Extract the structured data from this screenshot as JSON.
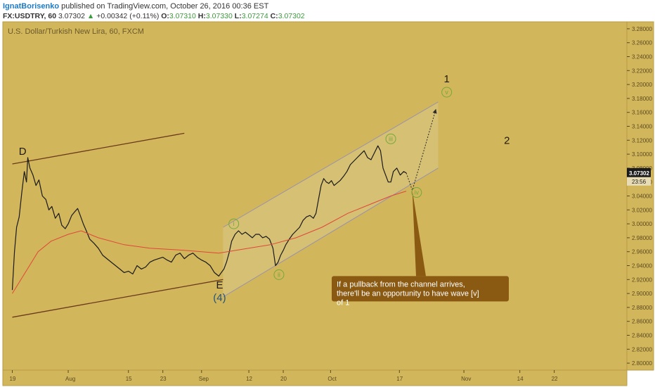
{
  "header": {
    "author": "IgnatBorisenko",
    "published": "published on TradingView.com, October 26, 2016 00:36 EST",
    "symbol": "FX:USDTRY, 60",
    "last": "3.07302",
    "change_arrow": "▲",
    "change": "+0.00342 (+0.11%)",
    "o_label": "O:",
    "o": "3.07310",
    "h_label": "H:",
    "h": "3.07330",
    "l_label": "L:",
    "l": "3.07274",
    "c_label": "C:",
    "c": "3.07302"
  },
  "colors": {
    "panel_bg": "#d2b65c",
    "price_line": "#1a1a1a",
    "moving_average": "#e0473a",
    "trend_lines": "#6b3a1c",
    "channel_lines": "#9a92a8",
    "channel_fill": "#d9c888",
    "callout_bg": "#8b5a12",
    "wave_circle": "#76a83a",
    "axis_text": "#5a4a20",
    "price_badge": "#1b1b1b"
  },
  "chart_data": {
    "type": "line",
    "title": "U.S. Dollar/Turkish New Lira, 60, FXCM",
    "y_axis": {
      "min": 2.79,
      "max": 3.29,
      "ticks": [
        "3.28000",
        "3.26000",
        "3.24000",
        "3.22000",
        "3.20000",
        "3.18000",
        "3.16000",
        "3.14000",
        "3.12000",
        "3.10000",
        "3.08000",
        "3.06000",
        "3.04000",
        "3.02000",
        "3.00000",
        "2.98000",
        "2.96000",
        "2.94000",
        "2.92000",
        "2.90000",
        "2.88000",
        "2.86000",
        "2.84000",
        "2.82000",
        "2.80000"
      ]
    },
    "x_axis": {
      "ticks": [
        {
          "label": "19",
          "day": 0
        },
        {
          "label": "Aug",
          "day": 13
        },
        {
          "label": "15",
          "day": 27
        },
        {
          "label": "23",
          "day": 35
        },
        {
          "label": "Sep",
          "day": 44
        },
        {
          "label": "12",
          "day": 55
        },
        {
          "label": "20",
          "day": 63
        },
        {
          "label": "Oct",
          "day": 74
        },
        {
          "label": "17",
          "day": 90
        },
        {
          "label": "Nov",
          "day": 105
        },
        {
          "label": "14",
          "day": 118
        },
        {
          "label": "22",
          "day": 126
        }
      ]
    },
    "last_price": {
      "value": 3.07302,
      "label": "3.07302",
      "countdown": "23:56"
    },
    "series": [
      {
        "role": "price",
        "points": [
          [
            0,
            2.905
          ],
          [
            0.5,
            2.96
          ],
          [
            1,
            2.995
          ],
          [
            1.6,
            3.01
          ],
          [
            2.2,
            3.045
          ],
          [
            2.8,
            3.075
          ],
          [
            3.3,
            3.06
          ],
          [
            3.6,
            3.095
          ],
          [
            4.1,
            3.08
          ],
          [
            4.8,
            3.07
          ],
          [
            5.5,
            3.055
          ],
          [
            6.2,
            3.063
          ],
          [
            7,
            3.04
          ],
          [
            7.8,
            3.035
          ],
          [
            8.5,
            3.02
          ],
          [
            9.2,
            3.025
          ],
          [
            10,
            3.008
          ],
          [
            10.8,
            3.015
          ],
          [
            11.5,
            2.998
          ],
          [
            12.3,
            2.993
          ],
          [
            13,
            3.0
          ],
          [
            13.8,
            3.012
          ],
          [
            14.6,
            3.018
          ],
          [
            15.2,
            3.022
          ],
          [
            15.8,
            3.012
          ],
          [
            16.5,
            3.0
          ],
          [
            17.2,
            2.99
          ],
          [
            18,
            2.978
          ],
          [
            19,
            2.972
          ],
          [
            20,
            2.965
          ],
          [
            21,
            2.955
          ],
          [
            22,
            2.95
          ],
          [
            23,
            2.945
          ],
          [
            24,
            2.94
          ],
          [
            25,
            2.935
          ],
          [
            26,
            2.93
          ],
          [
            27,
            2.932
          ],
          [
            28,
            2.928
          ],
          [
            29,
            2.94
          ],
          [
            30,
            2.935
          ],
          [
            31,
            2.938
          ],
          [
            32,
            2.945
          ],
          [
            33,
            2.948
          ],
          [
            34,
            2.95
          ],
          [
            35,
            2.952
          ],
          [
            36,
            2.948
          ],
          [
            37,
            2.945
          ],
          [
            38,
            2.955
          ],
          [
            39,
            2.958
          ],
          [
            40,
            2.95
          ],
          [
            41,
            2.955
          ],
          [
            42,
            2.958
          ],
          [
            43,
            2.952
          ],
          [
            44,
            2.948
          ],
          [
            45,
            2.945
          ],
          [
            46,
            2.94
          ],
          [
            47,
            2.93
          ],
          [
            48,
            2.925
          ],
          [
            48.6,
            2.93
          ],
          [
            49.2,
            2.935
          ],
          [
            49.8,
            2.945
          ],
          [
            50.4,
            2.958
          ],
          [
            51,
            2.975
          ],
          [
            51.8,
            2.985
          ],
          [
            52.6,
            2.99
          ],
          [
            53.4,
            2.985
          ],
          [
            54.2,
            2.988
          ],
          [
            55,
            2.984
          ],
          [
            55.8,
            2.98
          ],
          [
            56.6,
            2.985
          ],
          [
            57.4,
            2.985
          ],
          [
            58.2,
            2.98
          ],
          [
            59,
            2.982
          ],
          [
            59.8,
            2.978
          ],
          [
            60.6,
            2.965
          ],
          [
            61.2,
            2.94
          ],
          [
            61.8,
            2.945
          ],
          [
            62.4,
            2.955
          ],
          [
            63,
            2.962
          ],
          [
            63.6,
            2.97
          ],
          [
            64.4,
            2.978
          ],
          [
            65.2,
            2.985
          ],
          [
            66,
            2.99
          ],
          [
            66.8,
            2.995
          ],
          [
            67.6,
            3.005
          ],
          [
            68.4,
            3.01
          ],
          [
            69.2,
            3.012
          ],
          [
            70,
            3.008
          ],
          [
            70.6,
            3.015
          ],
          [
            71.2,
            3.035
          ],
          [
            71.8,
            3.055
          ],
          [
            72.4,
            3.065
          ],
          [
            73,
            3.06
          ],
          [
            73.6,
            3.058
          ],
          [
            74.2,
            3.062
          ],
          [
            74.8,
            3.055
          ],
          [
            75.4,
            3.058
          ],
          [
            76.2,
            3.062
          ],
          [
            77,
            3.068
          ],
          [
            77.8,
            3.075
          ],
          [
            78.6,
            3.085
          ],
          [
            79.4,
            3.09
          ],
          [
            80.2,
            3.095
          ],
          [
            81,
            3.1
          ],
          [
            81.8,
            3.105
          ],
          [
            82.6,
            3.095
          ],
          [
            83.4,
            3.092
          ],
          [
            84.2,
            3.102
          ],
          [
            85,
            3.112
          ],
          [
            85.6,
            3.105
          ],
          [
            86.2,
            3.08
          ],
          [
            86.8,
            3.07
          ],
          [
            87.4,
            3.06
          ],
          [
            88,
            3.06
          ],
          [
            88.6,
            3.075
          ],
          [
            89.4,
            3.08
          ],
          [
            90.2,
            3.07
          ],
          [
            91,
            3.075
          ],
          [
            91.6,
            3.073
          ]
        ]
      },
      {
        "role": "moving_average",
        "points": [
          [
            0,
            2.9
          ],
          [
            3,
            2.93
          ],
          [
            6,
            2.96
          ],
          [
            9,
            2.975
          ],
          [
            13,
            2.985
          ],
          [
            16,
            2.99
          ],
          [
            20,
            2.98
          ],
          [
            26,
            2.97
          ],
          [
            32,
            2.965
          ],
          [
            40,
            2.962
          ],
          [
            44,
            2.96
          ],
          [
            48,
            2.958
          ],
          [
            52,
            2.962
          ],
          [
            56,
            2.966
          ],
          [
            60,
            2.97
          ],
          [
            66,
            2.98
          ],
          [
            72,
            2.995
          ],
          [
            78,
            3.015
          ],
          [
            84,
            3.03
          ],
          [
            88,
            3.04
          ],
          [
            91.6,
            3.047
          ]
        ]
      }
    ],
    "trend_lines": [
      {
        "role": "upper",
        "points": [
          [
            0,
            3.086
          ],
          [
            40,
            3.13
          ]
        ]
      },
      {
        "role": "lower",
        "points": [
          [
            0,
            2.866
          ],
          [
            49,
            2.92
          ]
        ]
      }
    ],
    "channel": {
      "upper": [
        [
          49,
          2.995
        ],
        [
          99,
          3.175
        ]
      ],
      "lower": [
        [
          49,
          2.895
        ],
        [
          99,
          3.08
        ]
      ]
    },
    "projection": {
      "points": [
        [
          91.6,
          3.073
        ],
        [
          93,
          3.048
        ],
        [
          98.5,
          3.165
        ]
      ]
    },
    "wave_labels": [
      {
        "text": "D",
        "day": 2.4,
        "price": 3.104,
        "style": "plain"
      },
      {
        "text": "E",
        "day": 48.2,
        "price": 2.912,
        "style": "plain"
      },
      {
        "text": "(4)",
        "day": 48.2,
        "price": 2.894,
        "style": "blue"
      },
      {
        "text": "i",
        "day": 51.5,
        "price": 3.0,
        "style": "circle"
      },
      {
        "text": "ii",
        "day": 62,
        "price": 2.927,
        "style": "circle"
      },
      {
        "text": "iii",
        "day": 88,
        "price": 3.122,
        "style": "circle"
      },
      {
        "text": "iv",
        "day": 94,
        "price": 3.045,
        "style": "circle"
      },
      {
        "text": "v",
        "day": 101,
        "price": 3.189,
        "style": "circle"
      },
      {
        "text": "1",
        "day": 101,
        "price": 3.208,
        "style": "plain"
      },
      {
        "text": "2",
        "day": 115,
        "price": 3.12,
        "style": "plain"
      }
    ],
    "annotation": {
      "text": "If a pullback from the channel arrives, there'll be an opportunity to have wave [v] of 1",
      "target": [
        93,
        3.048
      ]
    }
  }
}
